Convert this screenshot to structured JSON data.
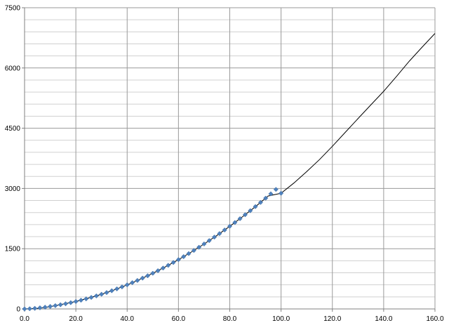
{
  "chart_data": {
    "type": "scatter",
    "title": "",
    "xlabel": "",
    "ylabel": "",
    "xlim": [
      0,
      160
    ],
    "ylim": [
      0,
      7500
    ],
    "x_major_ticks": [
      0,
      20,
      40,
      60,
      80,
      100,
      120,
      140,
      160
    ],
    "x_tick_labels": [
      "0.0",
      "20.0",
      "40.0",
      "60.0",
      "80.0",
      "100.0",
      "120.0",
      "140.0",
      "160.0"
    ],
    "y_major_ticks": [
      0,
      1500,
      3000,
      4500,
      6000,
      7500
    ],
    "y_tick_labels": [
      "0",
      "1500",
      "3000",
      "4500",
      "6000",
      "7500"
    ],
    "y_minor_step": 300,
    "grid": true,
    "legend": "none",
    "series": [
      {
        "kind": "markers",
        "color": "#4f81bd",
        "marker": "diamond",
        "x": [
          0,
          2,
          4,
          6,
          8,
          10,
          12,
          14,
          16,
          18,
          20,
          22,
          24,
          26,
          28,
          30,
          32,
          34,
          36,
          38,
          40,
          42,
          44,
          46,
          48,
          50,
          52,
          54,
          56,
          58,
          60,
          62,
          64,
          66,
          68,
          70,
          72,
          74,
          76,
          78,
          80,
          82,
          84,
          86,
          88,
          90,
          92,
          94,
          96,
          98,
          100
        ],
        "y": [
          0,
          5,
          15,
          28,
          43,
          62,
          82,
          104,
          129,
          156,
          185,
          217,
          251,
          287,
          325,
          365,
          408,
          453,
          500,
          549,
          600,
          654,
          709,
          767,
          826,
          888,
          952,
          1018,
          1086,
          1156,
          1228,
          1302,
          1378,
          1456,
          1536,
          1618,
          1702,
          1788,
          1876,
          1966,
          2058,
          2152,
          2248,
          2346,
          2446,
          2548,
          2652,
          2758,
          2866,
          2976,
          2880
        ]
      },
      {
        "kind": "trendline",
        "color": "#000000",
        "x": [
          0,
          5,
          10,
          15,
          20,
          25,
          30,
          35,
          40,
          45,
          50,
          55,
          60,
          65,
          70,
          75,
          80,
          85,
          90,
          95,
          100,
          105,
          110,
          115,
          120,
          125,
          130,
          135,
          140,
          145,
          150,
          155,
          160
        ],
        "y": [
          0,
          14,
          58,
          120,
          185,
          272,
          365,
          476,
          600,
          738,
          888,
          1052,
          1228,
          1416,
          1618,
          1831,
          2058,
          2297,
          2548,
          2813,
          2880,
          3135,
          3420,
          3720,
          4050,
          4395,
          4740,
          5080,
          5420,
          5790,
          6170,
          6520,
          6860
        ]
      }
    ]
  }
}
